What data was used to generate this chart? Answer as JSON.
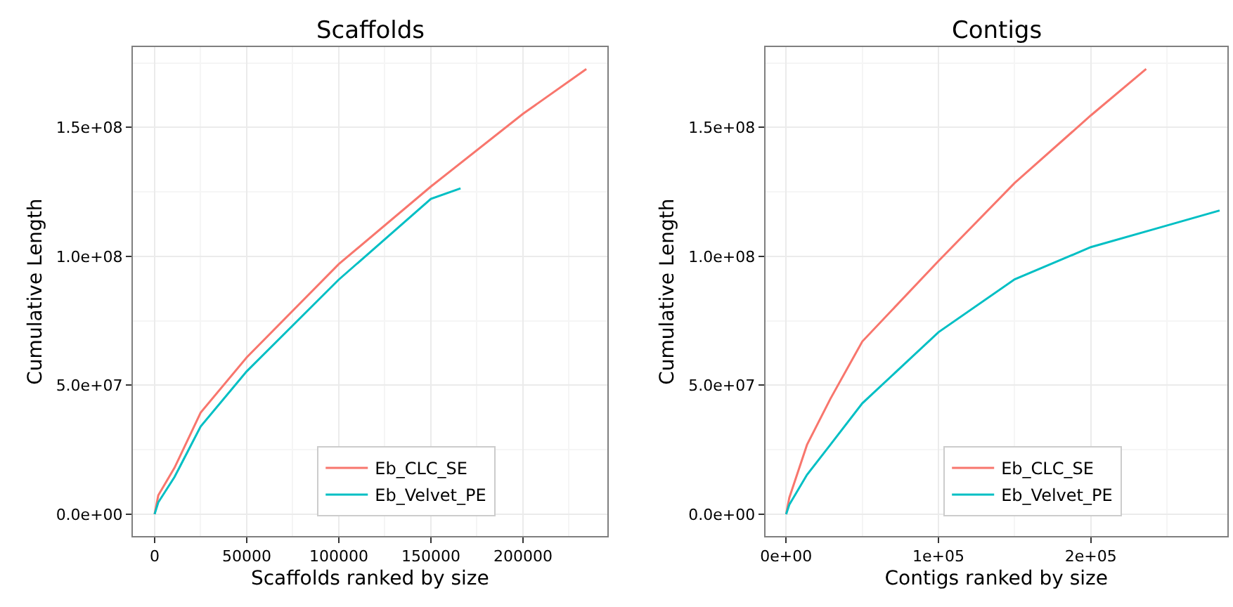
{
  "chart_data": [
    {
      "type": "line",
      "title": "Scaffolds",
      "xlabel": "Scaffolds ranked by size",
      "ylabel": "Cumulative Length",
      "xlim": [
        -11800,
        245700
      ],
      "xticks": [
        0,
        50000,
        100000,
        150000,
        200000
      ],
      "ylim": [
        -8400000,
        181100000
      ],
      "yticks": [
        {
          "value": 0,
          "label": "0.0e+00"
        },
        {
          "value": 50000000,
          "label": "5.0e+07"
        },
        {
          "value": 100000000,
          "label": "1.0e+08"
        },
        {
          "value": 150000000,
          "label": "1.5e+08"
        }
      ],
      "grid": true,
      "legend": "bottom",
      "marker": "none",
      "line_style": "solid",
      "series": [
        {
          "name": "Eb_CLC_SE",
          "color": "#f8766d",
          "x": [
            0,
            2000,
            10800,
            25000,
            50000,
            100000,
            150000,
            200000,
            234400
          ],
          "values": [
            0,
            7300000,
            18000000,
            39400000,
            60800000,
            97000000,
            127100000,
            155300000,
            172700000
          ]
        },
        {
          "name": "Eb_Velvet_PE",
          "color": "#00bfc4",
          "x": [
            0,
            2000,
            10800,
            25000,
            50000,
            100000,
            150000,
            166100
          ],
          "values": [
            0,
            4600000,
            14400000,
            34000000,
            55400000,
            91000000,
            122300000,
            126400000
          ]
        }
      ]
    },
    {
      "type": "line",
      "title": "Contigs",
      "xlabel": "Contigs ranked by size",
      "ylabel": "Cumulative Length",
      "xlim": [
        -13700,
        289600
      ],
      "xticks": [
        {
          "value": 0,
          "label": "0e+00"
        },
        {
          "value": 100000,
          "label": "1e+05"
        },
        {
          "value": 200000,
          "label": "2e+05"
        }
      ],
      "ylim": [
        -8400000,
        181100000
      ],
      "yticks": [
        {
          "value": 0,
          "label": "0.0e+00"
        },
        {
          "value": 50000000,
          "label": "5.0e+07"
        },
        {
          "value": 100000000,
          "label": "1.0e+08"
        },
        {
          "value": 150000000,
          "label": "1.5e+08"
        }
      ],
      "grid": true,
      "legend": "bottom",
      "marker": "none",
      "line_style": "solid",
      "series": [
        {
          "name": "Eb_CLC_SE",
          "color": "#f8766d",
          "x": [
            0,
            2100,
            13700,
            29000,
            50000,
            100000,
            150000,
            200000,
            236300
          ],
          "values": [
            0,
            6400000,
            26900000,
            44700000,
            67000000,
            98200000,
            128500000,
            154700000,
            172700000
          ]
        },
        {
          "name": "Eb_Velvet_PE",
          "color": "#00bfc4",
          "x": [
            0,
            2100,
            13700,
            29000,
            50000,
            100000,
            150000,
            200000,
            242400,
            284500
          ],
          "values": [
            0,
            3700000,
            15300000,
            26900000,
            43000000,
            70600000,
            91100000,
            103600000,
            110700000,
            117800000
          ]
        }
      ]
    }
  ]
}
